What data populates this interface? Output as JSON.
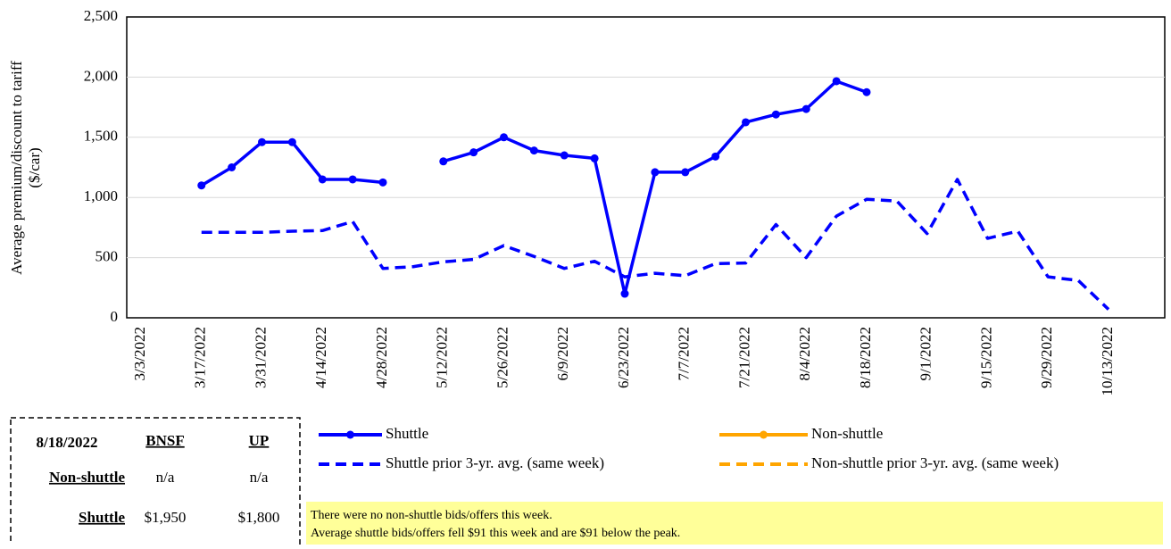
{
  "chart_data": {
    "type": "line",
    "ylabel_lines": [
      "Average premium/discount to tariff",
      "($/car)"
    ],
    "categories": [
      "3/3/2022",
      null,
      "3/17/2022",
      null,
      "3/31/2022",
      null,
      "4/14/2022",
      null,
      "4/28/2022",
      null,
      "5/12/2022",
      null,
      "5/26/2022",
      null,
      "6/9/2022",
      null,
      "6/23/2022",
      null,
      "7/7/2022",
      null,
      "7/21/2022",
      null,
      "8/4/2022",
      null,
      "8/18/2022",
      null,
      "9/1/2022",
      null,
      "9/15/2022",
      null,
      "9/29/2022",
      null,
      "10/13/2022"
    ],
    "series": [
      {
        "name": "Shuttle",
        "color": "#0000ff",
        "dash": false,
        "markers": true,
        "values": [
          null,
          null,
          1100,
          1250,
          1460,
          1460,
          1150,
          1150,
          1125,
          null,
          1300,
          1375,
          1500,
          1390,
          1350,
          1325,
          200,
          1210,
          1210,
          1340,
          1625,
          1690,
          1735,
          1966,
          1875,
          null,
          null,
          null,
          null,
          null,
          null,
          null,
          null
        ]
      },
      {
        "name": "Non-shuttle",
        "color": "#ffa500",
        "dash": false,
        "markers": true,
        "values": [
          null,
          null,
          null,
          null,
          null,
          null,
          null,
          null,
          null,
          null,
          null,
          null,
          null,
          null,
          null,
          null,
          null,
          null,
          null,
          null,
          null,
          null,
          null,
          null,
          null,
          null,
          null,
          null,
          null,
          null,
          null,
          null,
          null
        ]
      },
      {
        "name": "Shuttle prior 3-yr. avg. (same week)",
        "color": "#0000ff",
        "dash": true,
        "markers": false,
        "values": [
          null,
          null,
          710,
          710,
          710,
          720,
          725,
          800,
          410,
          425,
          465,
          485,
          600,
          510,
          410,
          470,
          340,
          370,
          350,
          450,
          455,
          775,
          500,
          845,
          985,
          970,
          700,
          1150,
          660,
          720,
          340,
          310,
          70
        ]
      },
      {
        "name": "Non-shuttle prior 3-yr. avg. (same week)",
        "color": "#ffa500",
        "dash": true,
        "markers": false,
        "values": [
          null,
          null,
          null,
          null,
          null,
          null,
          null,
          null,
          null,
          null,
          null,
          null,
          null,
          null,
          null,
          null,
          null,
          null,
          null,
          null,
          null,
          null,
          null,
          null,
          null,
          null,
          null,
          null,
          null,
          null,
          null,
          null,
          null
        ]
      }
    ],
    "ylim": [
      0,
      2500
    ],
    "yticks": [
      0,
      500,
      {
        "value": 1000,
        "label": "1,000"
      },
      {
        "value": 1500,
        "label": "1,500"
      },
      {
        "value": 2000,
        "label": "2,000"
      },
      {
        "value": 2500,
        "label": "2,500"
      }
    ],
    "grid": true
  },
  "table": {
    "title": "8/18/2022",
    "columns": [
      "BNSF",
      "UP"
    ],
    "rows": [
      [
        "Non-shuttle",
        "n/a",
        "n/a"
      ],
      [
        "Shuttle",
        "$1,950",
        "$1,800"
      ]
    ]
  },
  "note": [
    "There were no non-shuttle bids/offers  this week.",
    "Average shuttle bids/offers  fell $91 this week and are $91 below the peak."
  ]
}
